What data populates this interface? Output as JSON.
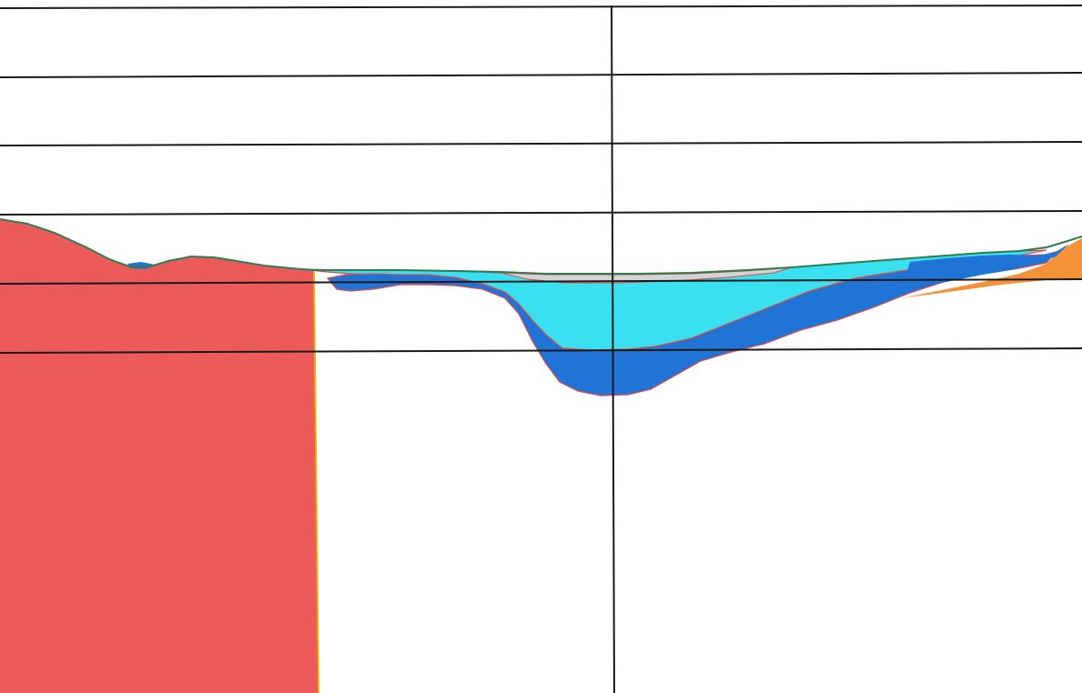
{
  "title": "",
  "colors": {
    "background": "#ffffff",
    "grid_line": "#1a1a1a",
    "bedrock_fill": "#ec5a5a",
    "bedrock_edge": "#e8b000",
    "layer_outline": "#e04a4a",
    "ground_surface": "#2e7d4f",
    "water_fill": "#38e0f0",
    "deep_layer_fill": "#1f74d6",
    "thin_grey_fill": "#cfd4d6",
    "orange_fill": "#f39237"
  },
  "legend": []
}
